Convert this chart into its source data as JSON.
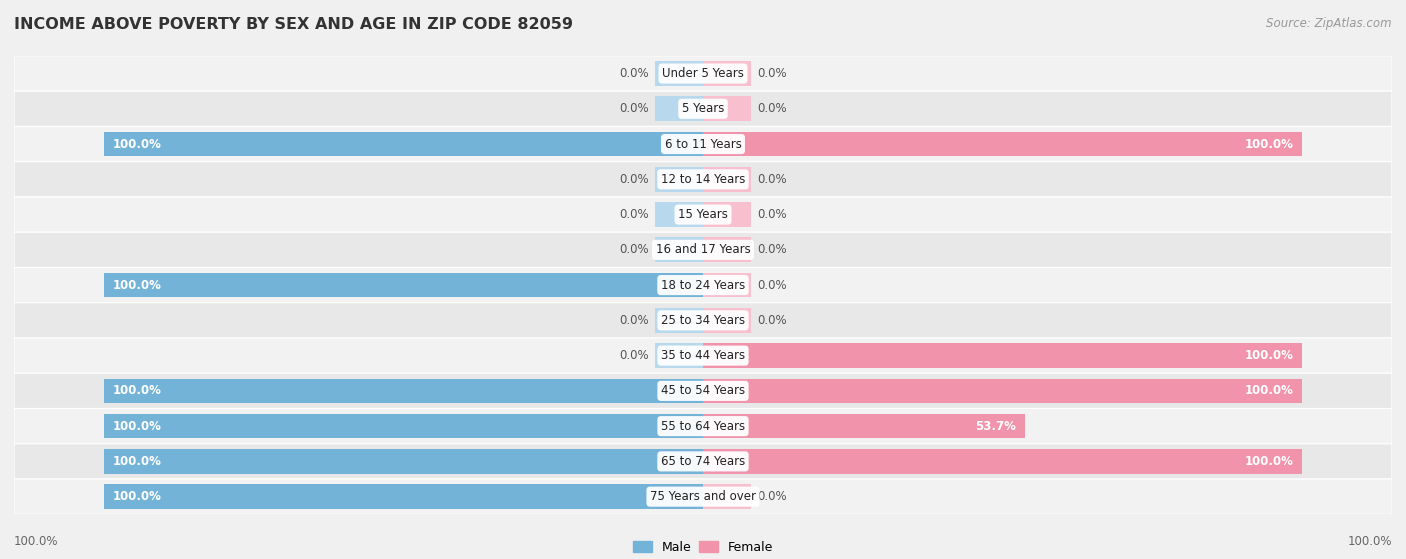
{
  "title": "INCOME ABOVE POVERTY BY SEX AND AGE IN ZIP CODE 82059",
  "source": "Source: ZipAtlas.com",
  "categories": [
    "Under 5 Years",
    "5 Years",
    "6 to 11 Years",
    "12 to 14 Years",
    "15 Years",
    "16 and 17 Years",
    "18 to 24 Years",
    "25 to 34 Years",
    "35 to 44 Years",
    "45 to 54 Years",
    "55 to 64 Years",
    "65 to 74 Years",
    "75 Years and over"
  ],
  "male_values": [
    0.0,
    0.0,
    100.0,
    0.0,
    0.0,
    0.0,
    100.0,
    0.0,
    0.0,
    100.0,
    100.0,
    100.0,
    100.0
  ],
  "female_values": [
    0.0,
    0.0,
    100.0,
    0.0,
    0.0,
    0.0,
    0.0,
    0.0,
    100.0,
    100.0,
    53.7,
    100.0,
    0.0
  ],
  "male_color": "#74b3d8",
  "female_color": "#f093ab",
  "male_zero_color": "#b8d8ed",
  "female_zero_color": "#f8c0cf",
  "row_light": "#f2f2f2",
  "row_dark": "#e8e8e8",
  "title_fontsize": 11.5,
  "source_fontsize": 8.5,
  "value_fontsize": 8.5,
  "cat_fontsize": 8.5,
  "max_val": 100.0,
  "background_color": "#f0f0f0",
  "zero_bar_width": 8.0,
  "stub_alpha": 0.7
}
